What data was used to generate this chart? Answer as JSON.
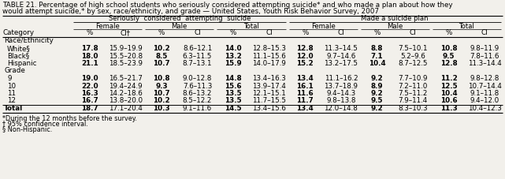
{
  "title_line1": "TABLE 21. Percentage of high school students who seriously considered attempting suicide* and who made a plan about how they",
  "title_line2": "would attempt suicide,* by sex, race/ethnicity, and grade — United States, Youth Risk Behavior Survey, 2007",
  "sections": [
    {
      "name": "Race/Ethnicity",
      "rows": [
        {
          "label": "White§",
          "values": [
            "17.8",
            "15.9–19.9",
            "10.2",
            "8.6–12.1",
            "14.0",
            "12.8–15.3",
            "12.8",
            "11.3–14.5",
            "8.8",
            "7.5–10.1",
            "10.8",
            "9.8–11.9"
          ]
        },
        {
          "label": "Black§",
          "values": [
            "18.0",
            "15.5–20.8",
            "8.5",
            "6.3–11.5",
            "13.2",
            "11.1–15.6",
            "12.0",
            "9.7–14.6",
            "7.1",
            "5.2–9.6",
            "9.5",
            "7.8–11.6"
          ]
        },
        {
          "label": "Hispanic",
          "values": [
            "21.1",
            "18.5–23.9",
            "10.7",
            "8.7–13.1",
            "15.9",
            "14.0–17.9",
            "15.2",
            "13.2–17.5",
            "10.4",
            "8.7–12.5",
            "12.8",
            "11.3–14.4"
          ]
        }
      ]
    },
    {
      "name": "Grade",
      "rows": [
        {
          "label": "9",
          "values": [
            "19.0",
            "16.5–21.7",
            "10.8",
            "9.0–12.8",
            "14.8",
            "13.4–16.3",
            "13.4",
            "11.1–16.2",
            "9.2",
            "7.7–10.9",
            "11.2",
            "9.8–12.8"
          ]
        },
        {
          "label": "10",
          "values": [
            "22.0",
            "19.4–24.9",
            "9.3",
            "7.6–11.3",
            "15.6",
            "13.9–17.4",
            "16.1",
            "13.7–18.9",
            "8.9",
            "7.2–11.0",
            "12.5",
            "10.7–14.4"
          ]
        },
        {
          "label": "11",
          "values": [
            "16.3",
            "14.2–18.6",
            "10.7",
            "8.6–13.2",
            "13.5",
            "12.1–15.1",
            "11.6",
            "9.4–14.3",
            "9.2",
            "7.5–11.2",
            "10.4",
            "9.1–11.8"
          ]
        },
        {
          "label": "12",
          "values": [
            "16.7",
            "13.8–20.0",
            "10.2",
            "8.5–12.2",
            "13.5",
            "11.7–15.5",
            "11.7",
            "9.8–13.8",
            "9.5",
            "7.9–11.4",
            "10.6",
            "9.4–12.0"
          ]
        }
      ]
    }
  ],
  "total_row": {
    "label": "Total",
    "values": [
      "18.7",
      "17.1–20.4",
      "10.3",
      "9.1–11.6",
      "14.5",
      "13.4–15.6",
      "13.4",
      "12.0–14.8",
      "9.2",
      "8.3–10.3",
      "11.3",
      "10.4–12.3"
    ]
  },
  "footnotes": [
    "*During the 12 months before the survey.",
    "† 95% confidence interval.",
    "§ Non-Hispanic."
  ],
  "bg_color": "#f2f0eb",
  "group_headers": [
    "Seriously  considered  attempting  suicide",
    "Made a suicide plan"
  ],
  "sub_headers": [
    "Female",
    "Male",
    "Total",
    "Female",
    "Male",
    "Total"
  ],
  "col_labels": [
    "%",
    "CI†",
    "%",
    "CI",
    "%",
    "CI",
    "%",
    "CI",
    "%",
    "CI",
    "%",
    "CI"
  ],
  "cat_label": "Category"
}
